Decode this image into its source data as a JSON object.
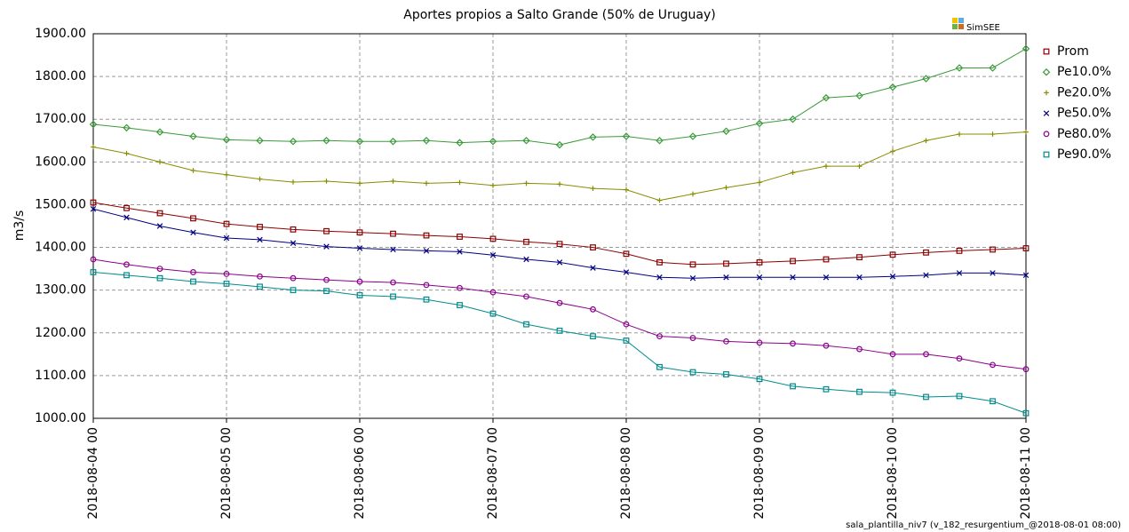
{
  "chart_data": {
    "type": "line",
    "title": "Aportes propios a Salto Grande (50% de Uruguay)",
    "ylabel": "m3/s",
    "logo_text": "SimSEE",
    "footnote": "sala_plantilla_niv7 (v_182_resurgentium_@2018-08-01 08:00)",
    "grid": true,
    "legend": "right",
    "x": [
      "2018-08-04 00",
      "2018-08-04 06",
      "2018-08-04 12",
      "2018-08-04 18",
      "2018-08-05 00",
      "2018-08-05 06",
      "2018-08-05 12",
      "2018-08-05 18",
      "2018-08-06 00",
      "2018-08-06 06",
      "2018-08-06 12",
      "2018-08-06 18",
      "2018-08-07 00",
      "2018-08-07 06",
      "2018-08-07 12",
      "2018-08-07 18",
      "2018-08-08 00",
      "2018-08-08 06",
      "2018-08-08 12",
      "2018-08-08 18",
      "2018-08-09 00",
      "2018-08-09 06",
      "2018-08-09 12",
      "2018-08-09 18",
      "2018-08-10 00",
      "2018-08-10 06",
      "2018-08-10 12",
      "2018-08-10 18",
      "2018-08-11 00"
    ],
    "xlim": [
      "2018-08-04 00",
      "2018-08-11 00"
    ],
    "xticks": [
      "2018-08-04 00",
      "2018-08-05 00",
      "2018-08-06 00",
      "2018-08-07 00",
      "2018-08-08 00",
      "2018-08-09 00",
      "2018-08-10 00",
      "2018-08-11 00"
    ],
    "ylim": [
      1000,
      1900
    ],
    "yticks": [
      {
        "value": 1000,
        "label": "1000.00"
      },
      {
        "value": 1100,
        "label": "1100.00"
      },
      {
        "value": 1200,
        "label": "1200.00"
      },
      {
        "value": 1300,
        "label": "1300.00"
      },
      {
        "value": 1400,
        "label": "1400.00"
      },
      {
        "value": 1500,
        "label": "1500.00"
      },
      {
        "value": 1600,
        "label": "1600.00"
      },
      {
        "value": 1700,
        "label": "1700.00"
      },
      {
        "value": 1800,
        "label": "1800.00"
      },
      {
        "value": 1900,
        "label": "1900.00"
      }
    ],
    "series": [
      {
        "name": "Prom",
        "color": "#8b0000",
        "marker": "square",
        "values": [
          1505,
          1492,
          1480,
          1468,
          1455,
          1448,
          1442,
          1438,
          1435,
          1432,
          1428,
          1425,
          1420,
          1413,
          1408,
          1400,
          1385,
          1365,
          1360,
          1362,
          1365,
          1368,
          1372,
          1377,
          1383,
          1388,
          1392,
          1395,
          1398
        ]
      },
      {
        "name": "Pe10.0%",
        "color": "#3a9a3a",
        "marker": "diamond",
        "values": [
          1688,
          1680,
          1670,
          1660,
          1652,
          1650,
          1648,
          1650,
          1648,
          1648,
          1650,
          1645,
          1648,
          1650,
          1640,
          1658,
          1660,
          1650,
          1660,
          1672,
          1690,
          1700,
          1750,
          1755,
          1775,
          1795,
          1820,
          1820,
          1865
        ]
      },
      {
        "name": "Pe20.0%",
        "color": "#8b8b00",
        "marker": "plus",
        "values": [
          1635,
          1620,
          1600,
          1580,
          1570,
          1560,
          1553,
          1555,
          1550,
          1555,
          1550,
          1552,
          1545,
          1550,
          1548,
          1538,
          1535,
          1510,
          1525,
          1540,
          1552,
          1575,
          1590,
          1590,
          1625,
          1650,
          1665,
          1665,
          1670
        ]
      },
      {
        "name": "Pe50.0%",
        "color": "#000080",
        "marker": "x",
        "values": [
          1490,
          1470,
          1450,
          1435,
          1422,
          1418,
          1410,
          1402,
          1398,
          1395,
          1392,
          1390,
          1382,
          1372,
          1365,
          1352,
          1342,
          1330,
          1328,
          1330,
          1330,
          1330,
          1330,
          1330,
          1332,
          1335,
          1340,
          1340,
          1335
        ]
      },
      {
        "name": "Pe80.0%",
        "color": "#8b008b",
        "marker": "circle",
        "values": [
          1372,
          1360,
          1350,
          1342,
          1338,
          1332,
          1328,
          1324,
          1320,
          1318,
          1312,
          1305,
          1295,
          1285,
          1270,
          1255,
          1220,
          1192,
          1188,
          1180,
          1177,
          1175,
          1170,
          1162,
          1150,
          1150,
          1140,
          1125,
          1115
        ]
      },
      {
        "name": "Pe90.0%",
        "color": "#008b8b",
        "marker": "square",
        "values": [
          1342,
          1335,
          1328,
          1320,
          1315,
          1308,
          1300,
          1298,
          1288,
          1285,
          1278,
          1265,
          1245,
          1220,
          1205,
          1192,
          1182,
          1120,
          1108,
          1103,
          1092,
          1075,
          1068,
          1062,
          1060,
          1050,
          1052,
          1040,
          1012
        ]
      }
    ]
  }
}
